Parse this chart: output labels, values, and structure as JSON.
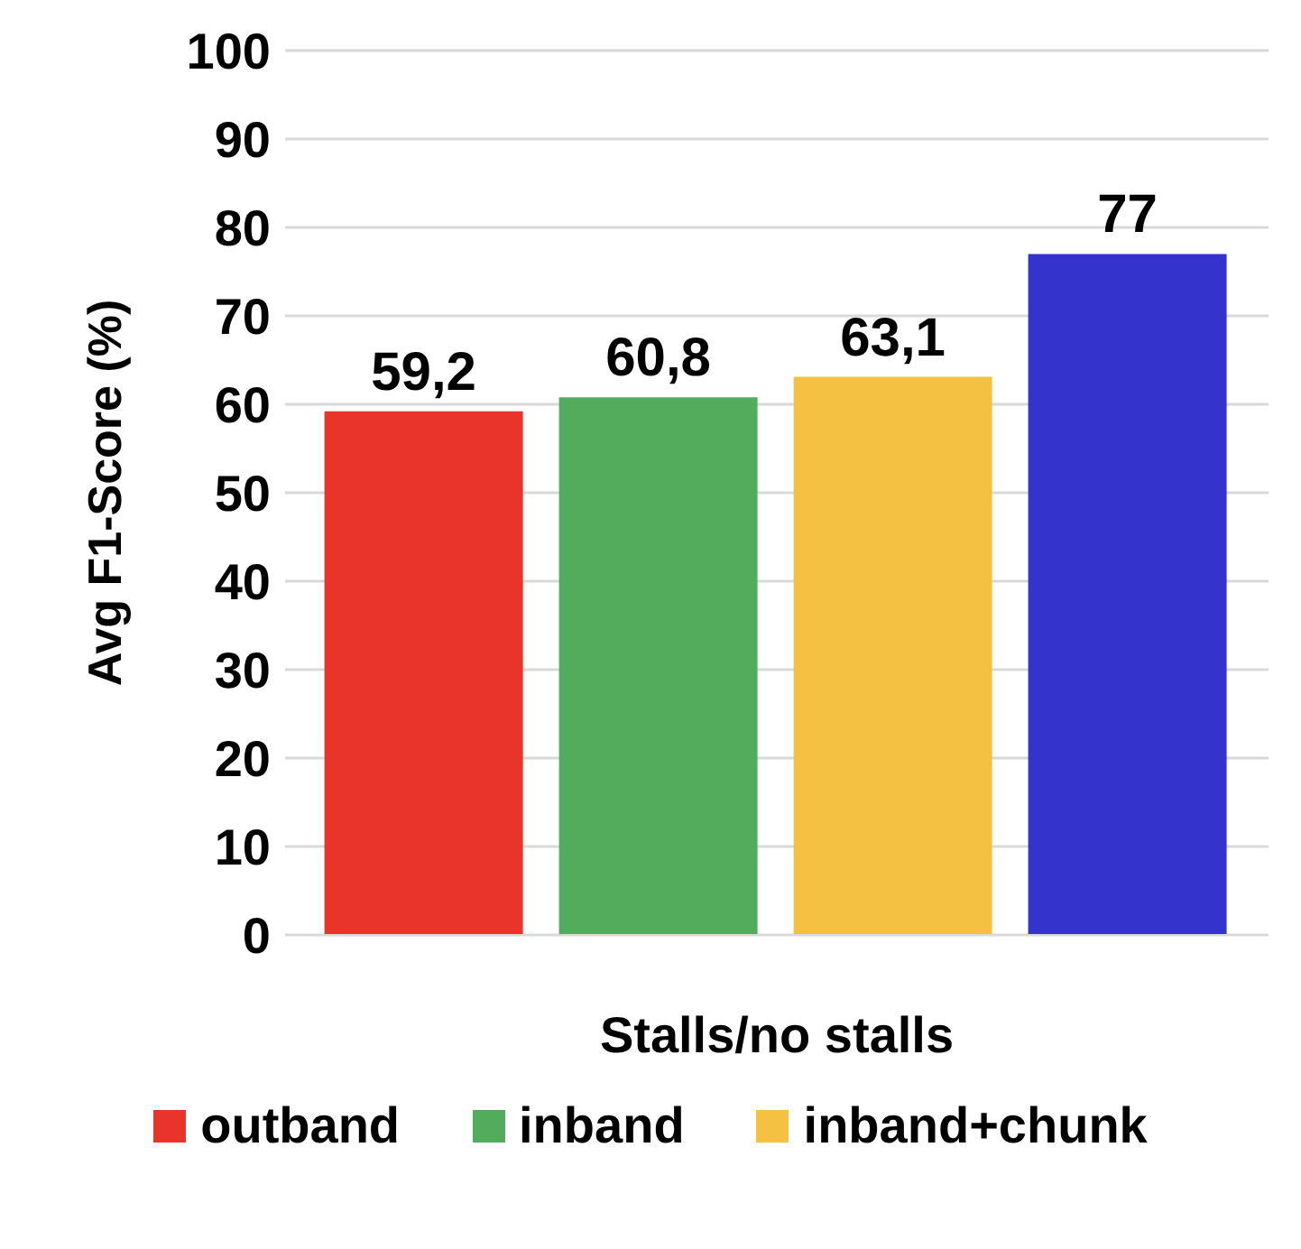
{
  "chart_data": {
    "type": "bar",
    "xlabel": "Stalls/no stalls",
    "ylabel": "Avg F1-Score (%)",
    "categories": [
      null
    ],
    "series": [
      {
        "name": "outband",
        "color": "#e8342a",
        "values": [
          59.2
        ],
        "value_labels": [
          "59,2"
        ]
      },
      {
        "name": "inband",
        "color": "#52ac5c",
        "values": [
          60.8
        ],
        "value_labels": [
          "60,8"
        ]
      },
      {
        "name": "inband+chunk",
        "color": "#f5c142",
        "values": [
          63.1
        ],
        "value_labels": [
          "63,1"
        ]
      },
      {
        "color": "#3434cc",
        "values": [
          77
        ],
        "value_labels": [
          "77"
        ]
      }
    ],
    "ylim": [
      0,
      100
    ],
    "yticks": [
      0,
      10,
      20,
      30,
      40,
      50,
      60,
      70,
      80,
      90,
      100
    ],
    "grid": "y",
    "legend": "bottom"
  }
}
